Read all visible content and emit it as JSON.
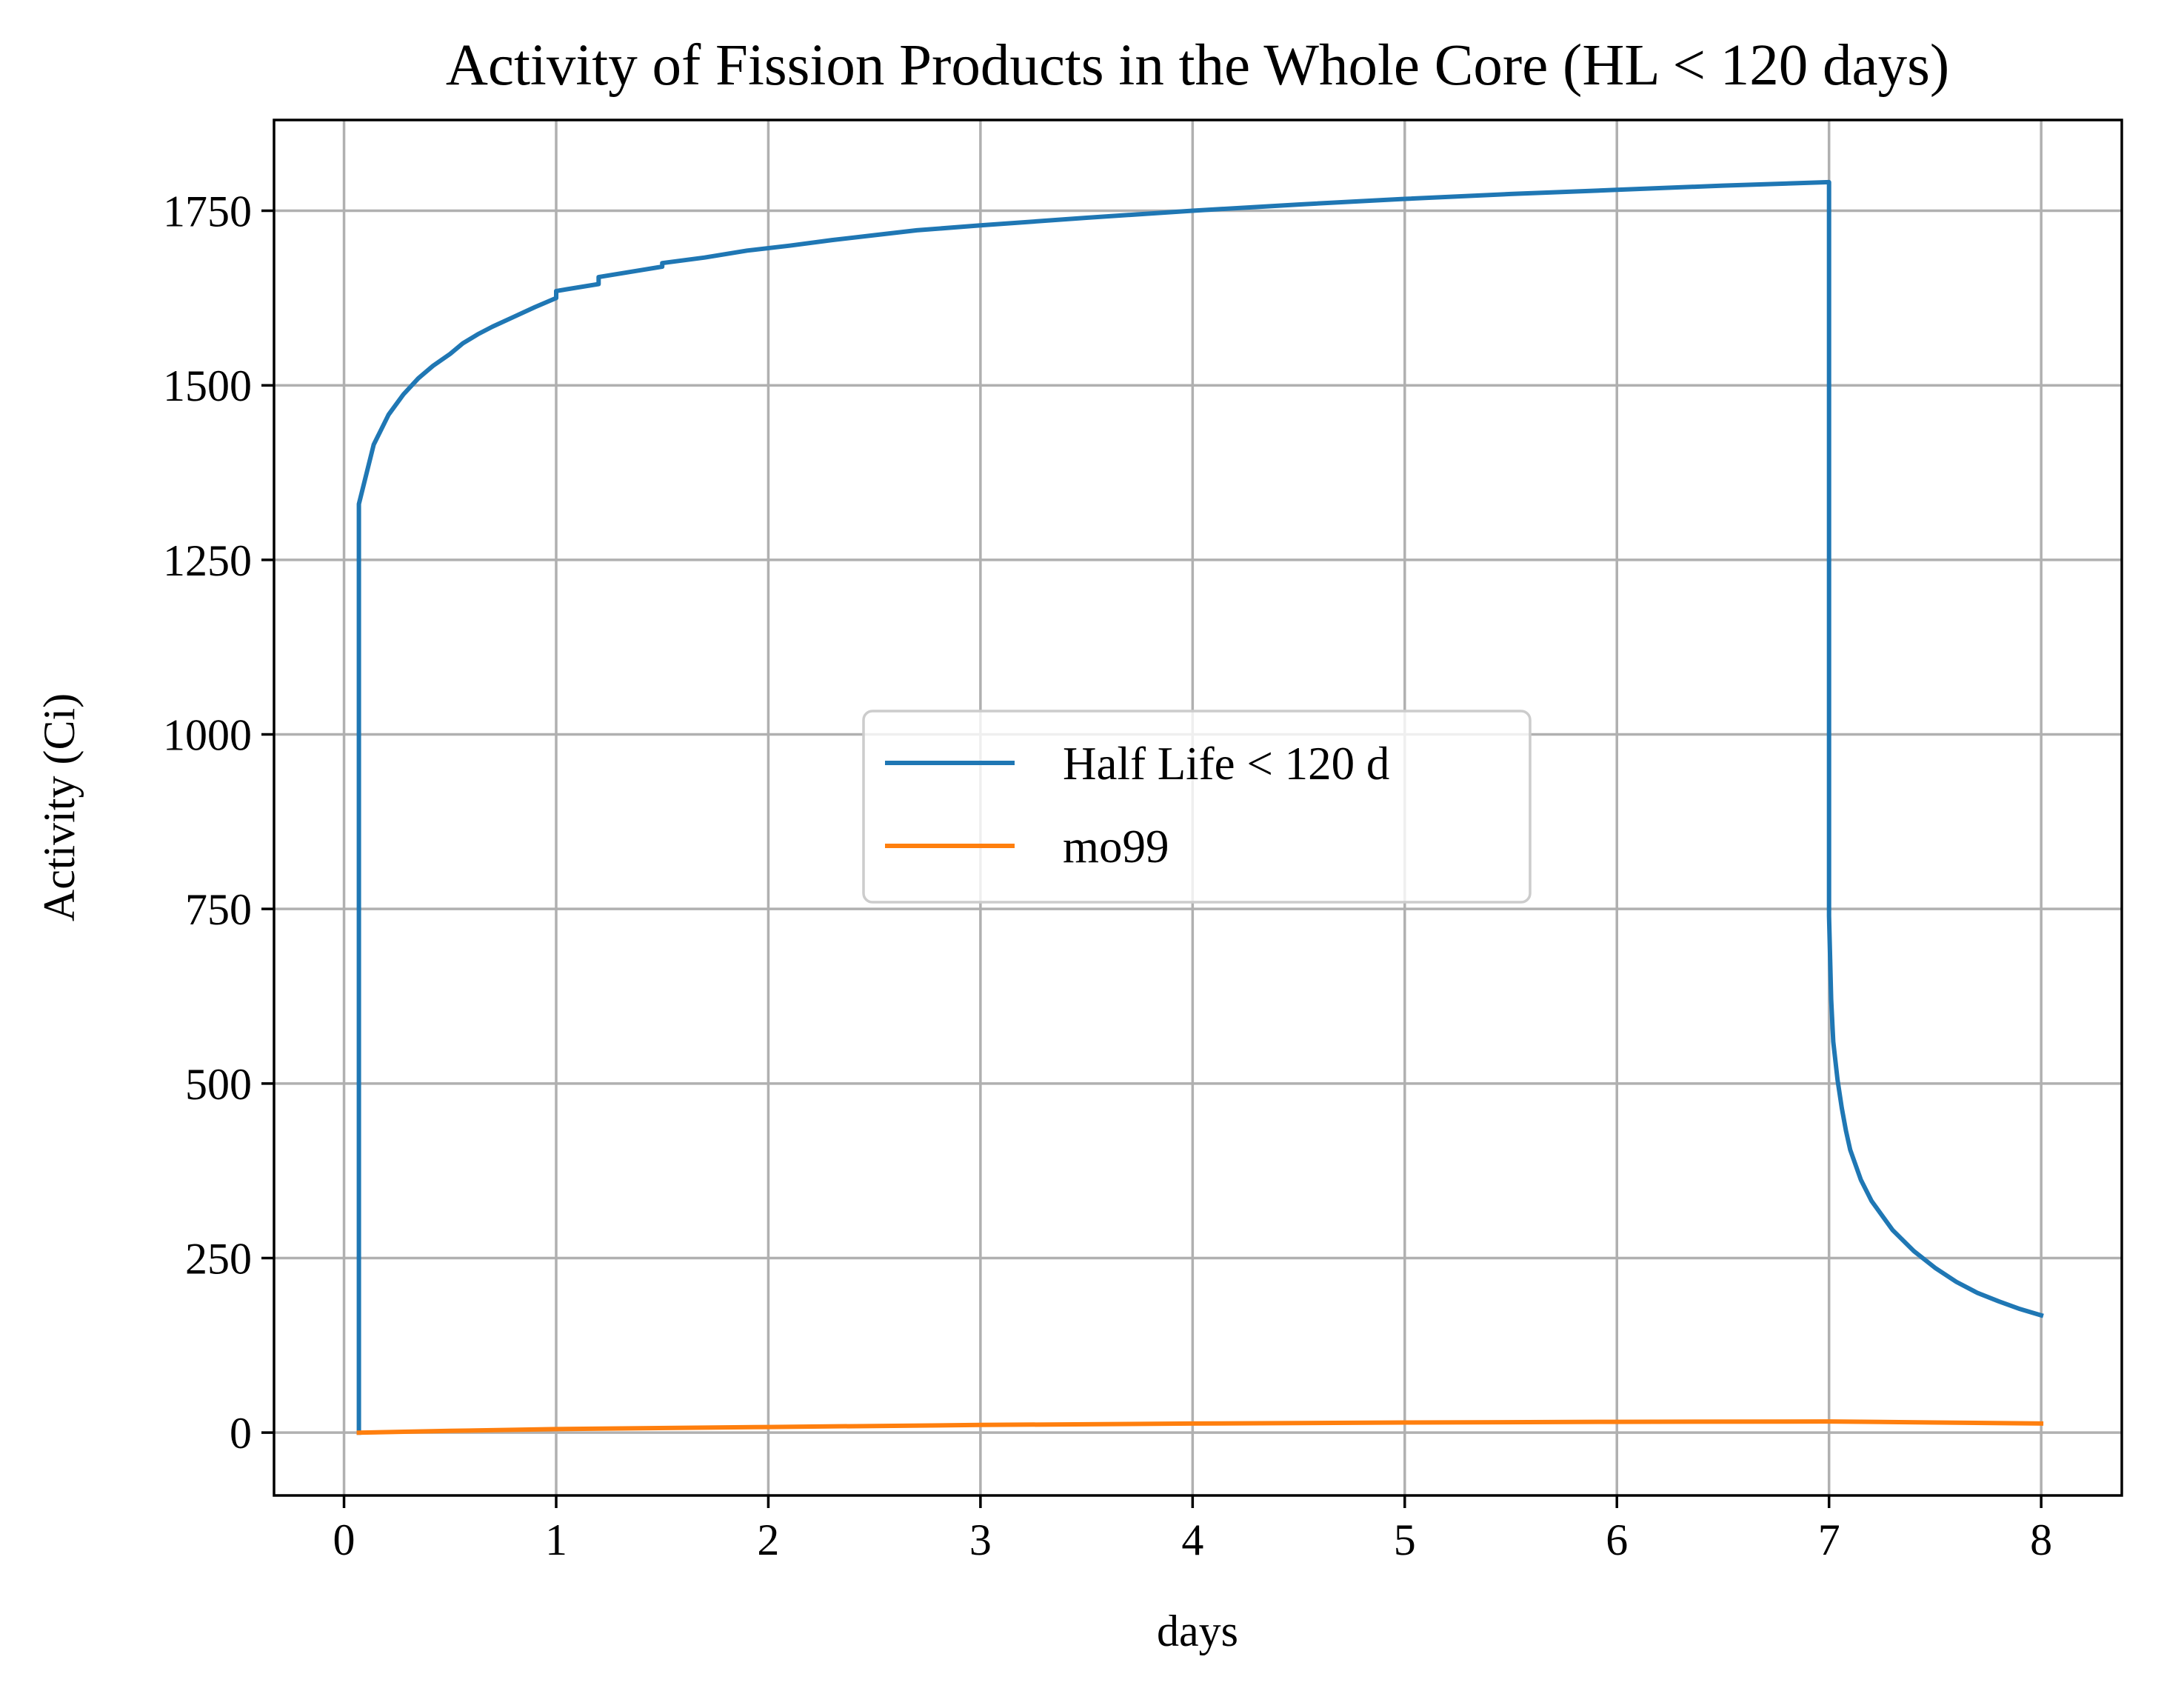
{
  "chart_data": {
    "type": "line",
    "title": "Activity of Fission Products in the Whole Core (HL < 120 days)",
    "xlabel": "days",
    "ylabel": "Activity (Ci)",
    "xlim": [
      -0.33,
      8.38
    ],
    "ylim": [
      -90,
      1880
    ],
    "xticks": [
      0,
      1,
      2,
      3,
      4,
      5,
      6,
      7,
      8
    ],
    "yticks": [
      0,
      250,
      500,
      750,
      1000,
      1250,
      1500,
      1750
    ],
    "xtick_labels": [
      "0",
      "1",
      "2",
      "3",
      "4",
      "5",
      "6",
      "7",
      "8"
    ],
    "ytick_labels": [
      "0",
      "250",
      "500",
      "750",
      "1000",
      "1250",
      "1500",
      "1750"
    ],
    "grid": true,
    "legend_position": "center",
    "series": [
      {
        "name": "Half Life < 120 d",
        "color": "#1f77b4",
        "points": [
          [
            0.07,
            0
          ],
          [
            0.07,
            1330
          ],
          [
            0.14,
            1415
          ],
          [
            0.21,
            1458
          ],
          [
            0.28,
            1487
          ],
          [
            0.35,
            1510
          ],
          [
            0.42,
            1528
          ],
          [
            0.5,
            1545
          ],
          [
            0.56,
            1560
          ],
          [
            0.63,
            1573
          ],
          [
            0.7,
            1584
          ],
          [
            0.8,
            1598
          ],
          [
            0.9,
            1612
          ],
          [
            1.0,
            1625
          ],
          [
            1.0,
            1635
          ],
          [
            1.2,
            1645
          ],
          [
            1.2,
            1655
          ],
          [
            1.4,
            1665
          ],
          [
            1.5,
            1670
          ],
          [
            1.5,
            1675
          ],
          [
            1.7,
            1683
          ],
          [
            1.9,
            1693
          ],
          [
            2.1,
            1700
          ],
          [
            2.3,
            1708
          ],
          [
            2.5,
            1715
          ],
          [
            2.7,
            1722
          ],
          [
            3.0,
            1729
          ],
          [
            3.5,
            1740
          ],
          [
            4.0,
            1750
          ],
          [
            4.5,
            1759
          ],
          [
            5.0,
            1767
          ],
          [
            5.5,
            1774
          ],
          [
            6.0,
            1780
          ],
          [
            6.5,
            1786
          ],
          [
            7.0,
            1791
          ],
          [
            7.0,
            740
          ],
          [
            7.01,
            620
          ],
          [
            7.02,
            560
          ],
          [
            7.04,
            505
          ],
          [
            7.06,
            465
          ],
          [
            7.08,
            432
          ],
          [
            7.1,
            405
          ],
          [
            7.15,
            362
          ],
          [
            7.2,
            332
          ],
          [
            7.3,
            290
          ],
          [
            7.4,
            260
          ],
          [
            7.5,
            236
          ],
          [
            7.6,
            216
          ],
          [
            7.7,
            200
          ],
          [
            7.8,
            188
          ],
          [
            7.9,
            177
          ],
          [
            8.0,
            168
          ]
        ]
      },
      {
        "name": "mo99",
        "color": "#ff7f0e",
        "points": [
          [
            0.07,
            0
          ],
          [
            0.5,
            2.5
          ],
          [
            1.0,
            5
          ],
          [
            2.0,
            8
          ],
          [
            3.0,
            11
          ],
          [
            4.0,
            13
          ],
          [
            5.0,
            14.5
          ],
          [
            6.0,
            15.5
          ],
          [
            7.0,
            16
          ],
          [
            7.5,
            14.5
          ],
          [
            8.0,
            13
          ]
        ]
      }
    ]
  }
}
